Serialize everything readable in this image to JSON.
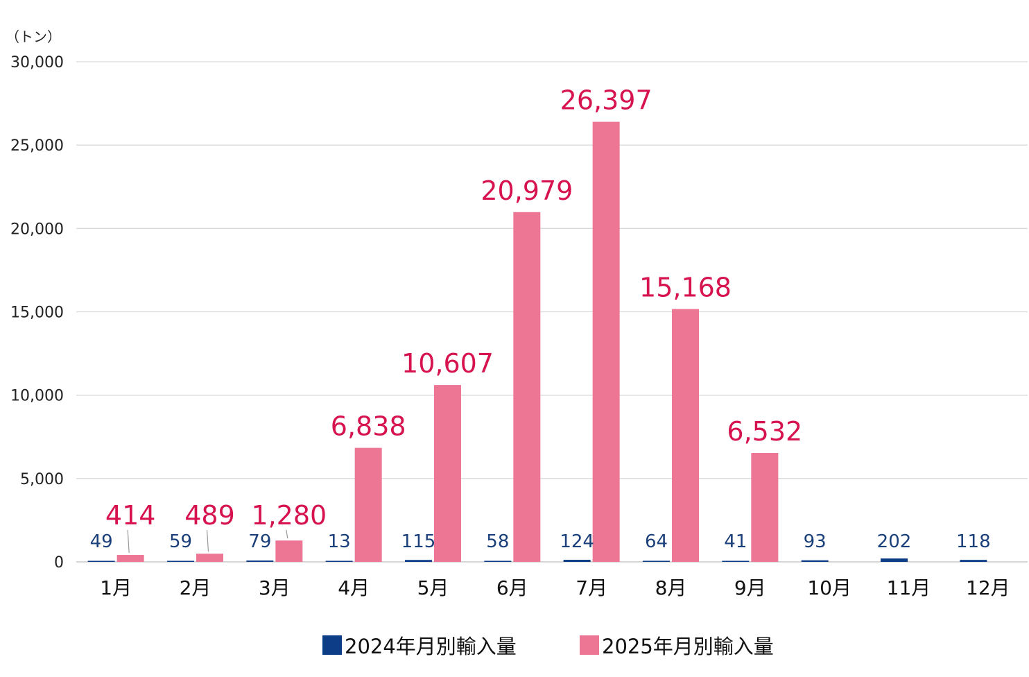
{
  "chart_data": {
    "type": "bar",
    "unit_label": "（トン）",
    "categories": [
      "1月",
      "2月",
      "3月",
      "4月",
      "5月",
      "6月",
      "7月",
      "8月",
      "9月",
      "10月",
      "11月",
      "12月"
    ],
    "ylim": [
      0,
      30000
    ],
    "yticks": [
      0,
      5000,
      10000,
      15000,
      20000,
      25000,
      30000
    ],
    "ytick_labels": [
      "0",
      "5,000",
      "10,000",
      "15,000",
      "20,000",
      "25,000",
      "30,000"
    ],
    "grid": true,
    "legend_position": "bottom",
    "series": [
      {
        "name": "2024年月別輸入量",
        "color": "#0d3d87",
        "label_color": "#1a3f7a",
        "values": [
          49,
          59,
          79,
          13,
          115,
          58,
          124,
          64,
          41,
          93,
          202,
          118
        ],
        "labels": [
          "49",
          "59",
          "79",
          "13",
          "115",
          "58",
          "124",
          "64",
          "41",
          "93",
          "202",
          "118"
        ]
      },
      {
        "name": "2025年月別輸入量",
        "color": "#ee7695",
        "label_color": "#d6134f",
        "values": [
          414,
          489,
          1280,
          6838,
          10607,
          20979,
          26397,
          15168,
          6532,
          null,
          null,
          null
        ],
        "labels": [
          "414",
          "489",
          "1,280",
          "6,838",
          "10,607",
          "20,979",
          "26,397",
          "15,168",
          "6,532",
          "",
          "",
          ""
        ]
      }
    ]
  }
}
